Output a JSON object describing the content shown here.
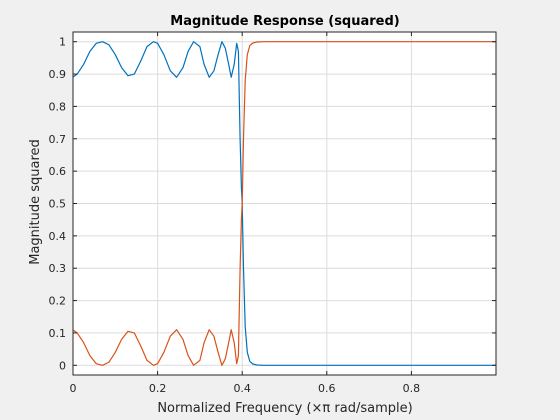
{
  "chart_data": {
    "type": "line",
    "title": "Magnitude Response (squared)",
    "xlabel": "Normalized Frequency (×π rad/sample)",
    "ylabel": "Magnitude squared",
    "xlim": [
      0,
      1
    ],
    "ylim": [
      -0.03,
      1.03
    ],
    "grid": true,
    "x_ticks": [
      "0",
      "0.2",
      "0.4",
      "0.6",
      "0.8"
    ],
    "x_tick_values": [
      0,
      0.2,
      0.4,
      0.6,
      0.8
    ],
    "y_ticks": [
      "0",
      "0.1",
      "0.2",
      "0.3",
      "0.4",
      "0.5",
      "0.6",
      "0.7",
      "0.8",
      "0.9",
      "1"
    ],
    "y_tick_values": [
      0,
      0.1,
      0.2,
      0.3,
      0.4,
      0.5,
      0.6,
      0.7,
      0.8,
      0.9,
      1
    ],
    "colors": {
      "series1": "#0072bd",
      "series2": "#d95319",
      "axes_bg": "#ffffff",
      "fig_bg": "#f0f0f0",
      "grid": "#dcdcdc",
      "axis": "#262626"
    },
    "series": [
      {
        "x": [
          0,
          0.01,
          0.025,
          0.04,
          0.055,
          0.07,
          0.085,
          0.1,
          0.115,
          0.13,
          0.145,
          0.16,
          0.175,
          0.19,
          0.2,
          0.215,
          0.23,
          0.245,
          0.26,
          0.272,
          0.285,
          0.3,
          0.31,
          0.322,
          0.333,
          0.343,
          0.352,
          0.36,
          0.368,
          0.374,
          0.381,
          0.387,
          0.391,
          0.395,
          0.398,
          0.4,
          0.403,
          0.407,
          0.412,
          0.418,
          0.425,
          0.435,
          0.45,
          0.5,
          0.6,
          0.7,
          0.8,
          0.9,
          1.0
        ],
        "values": [
          0.891,
          0.9,
          0.93,
          0.97,
          0.995,
          1.0,
          0.99,
          0.96,
          0.92,
          0.895,
          0.9,
          0.94,
          0.985,
          1.0,
          0.995,
          0.96,
          0.91,
          0.89,
          0.92,
          0.97,
          1.0,
          0.985,
          0.93,
          0.89,
          0.91,
          0.96,
          1.0,
          0.98,
          0.93,
          0.89,
          0.93,
          0.995,
          0.97,
          0.7,
          0.55,
          0.5,
          0.3,
          0.12,
          0.04,
          0.012,
          0.004,
          0.001,
          0.0,
          0.0,
          0.0,
          0.0,
          0.0,
          0.0,
          0.0
        ]
      },
      {
        "x": [
          0,
          0.01,
          0.025,
          0.04,
          0.055,
          0.07,
          0.085,
          0.1,
          0.115,
          0.13,
          0.145,
          0.16,
          0.175,
          0.19,
          0.2,
          0.215,
          0.23,
          0.245,
          0.26,
          0.272,
          0.285,
          0.3,
          0.31,
          0.322,
          0.333,
          0.343,
          0.352,
          0.36,
          0.368,
          0.374,
          0.381,
          0.387,
          0.391,
          0.395,
          0.398,
          0.4,
          0.403,
          0.407,
          0.412,
          0.418,
          0.425,
          0.435,
          0.45,
          0.5,
          0.6,
          0.7,
          0.8,
          0.9,
          1.0
        ],
        "values": [
          0.109,
          0.1,
          0.07,
          0.03,
          0.005,
          0.0,
          0.01,
          0.04,
          0.08,
          0.105,
          0.1,
          0.06,
          0.015,
          0.0,
          0.005,
          0.04,
          0.09,
          0.11,
          0.08,
          0.03,
          0.0,
          0.015,
          0.07,
          0.11,
          0.09,
          0.04,
          0.0,
          0.02,
          0.07,
          0.11,
          0.07,
          0.005,
          0.03,
          0.3,
          0.45,
          0.5,
          0.7,
          0.88,
          0.96,
          0.988,
          0.996,
          0.999,
          1.0,
          1.0,
          1.0,
          1.0,
          1.0,
          1.0,
          1.0
        ]
      }
    ]
  }
}
